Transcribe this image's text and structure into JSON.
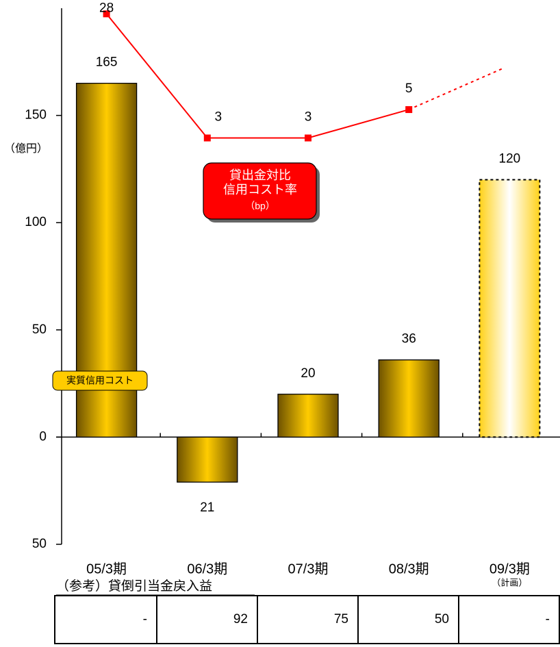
{
  "chart_data": {
    "type": "bar_line",
    "y_unit_label": "（億円）",
    "categories": [
      "05/3期",
      "06/3期",
      "07/3期",
      "08/3期",
      "09/3期"
    ],
    "category_notes": [
      null,
      null,
      null,
      null,
      "（計画）"
    ],
    "forecast_index": 4,
    "ylim": [
      -50,
      200
    ],
    "yticks": [
      {
        "value": -50,
        "label": "50"
      },
      0,
      50,
      100,
      150
    ],
    "y2lim": [
      0.002,
      31
    ],
    "y2log": true,
    "series": [
      {
        "name": "実質信用コスト",
        "type": "bar",
        "color": "#ffcc00",
        "edge_color": "#7a5a00",
        "values": [
          165,
          -21,
          20,
          36,
          120
        ],
        "value_labels": [
          "165",
          "21",
          "20",
          "36",
          "120"
        ]
      },
      {
        "name_lines": [
          "貸出金対比",
          "信用コスト率"
        ],
        "unit": "（bp）",
        "type": "line",
        "axis": "y2",
        "color": "#ff0000",
        "values": [
          28,
          3,
          3,
          5,
          11
        ],
        "value_labels": [
          "28",
          "3",
          "3",
          "5",
          null
        ]
      }
    ],
    "reference_table": {
      "title": "（参考）貸倒引当金戻入益",
      "cells": [
        "-",
        "92",
        "75",
        "50",
        "-"
      ]
    }
  }
}
